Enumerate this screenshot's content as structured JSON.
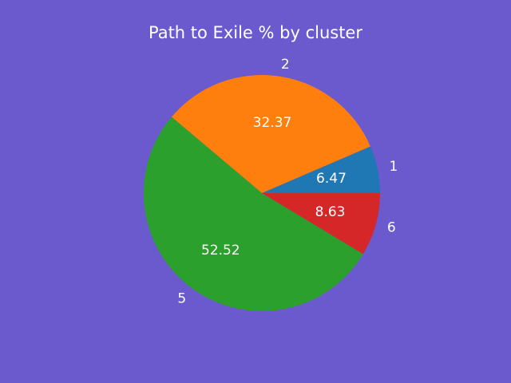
{
  "chart_data": {
    "type": "pie",
    "title": "Path to Exile % by cluster",
    "categories": [
      "1",
      "2",
      "5",
      "6"
    ],
    "values": [
      6.47,
      32.37,
      52.52,
      8.63
    ],
    "value_labels": [
      "6.47",
      "32.37",
      "52.52",
      "8.63"
    ],
    "colors": [
      "#1f77b4",
      "#ff7f0e",
      "#2ca02c",
      "#d62728"
    ],
    "start_angle_deg": 0,
    "direction": "counterclockwise",
    "legend": "none"
  },
  "style": {
    "background": "#6a5acd",
    "text_color": "#ffffff"
  }
}
